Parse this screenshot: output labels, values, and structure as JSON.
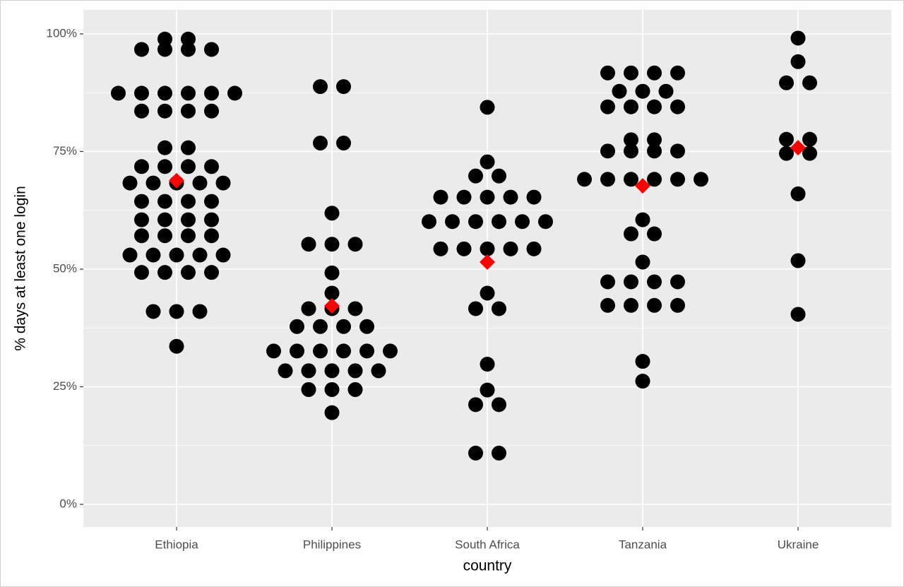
{
  "chart_data": {
    "type": "dotplot",
    "x_label": "country",
    "y_label": "% days at least one login",
    "categories": [
      "Ethiopia",
      "Philippines",
      "South Africa",
      "Tanzania",
      "Ukraine"
    ],
    "values": [
      [
        98.9,
        98.9,
        96.7,
        96.7,
        96.7,
        96.7,
        87.4,
        87.4,
        87.4,
        87.4,
        87.4,
        87.4,
        83.6,
        83.6,
        83.6,
        83.6,
        75.8,
        75.8,
        71.8,
        71.8,
        71.8,
        71.8,
        68.3,
        68.3,
        68.3,
        68.3,
        68.3,
        64.4,
        64.4,
        64.4,
        64.4,
        60.5,
        60.5,
        60.5,
        60.5,
        57.1,
        57.1,
        57.1,
        57.1,
        53.0,
        53.0,
        53.0,
        53.0,
        53.0,
        49.3,
        49.3,
        49.3,
        49.3,
        41.0,
        41.0,
        41.0,
        33.6
      ],
      [
        88.8,
        88.8,
        76.8,
        76.8,
        61.9,
        55.3,
        55.3,
        55.3,
        49.2,
        44.9,
        41.6,
        41.6,
        41.6,
        37.8,
        37.8,
        37.8,
        37.8,
        32.6,
        32.6,
        32.6,
        32.6,
        32.6,
        32.6,
        28.4,
        28.4,
        28.4,
        28.4,
        28.4,
        24.4,
        24.4,
        24.4,
        19.5
      ],
      [
        84.4,
        72.8,
        69.8,
        69.8,
        65.3,
        65.3,
        65.3,
        65.3,
        65.3,
        60.1,
        60.1,
        60.1,
        60.1,
        60.1,
        60.1,
        54.3,
        54.3,
        54.3,
        54.3,
        54.3,
        44.9,
        41.6,
        41.6,
        29.8,
        24.3,
        21.2,
        21.2,
        10.9,
        10.9
      ],
      [
        91.7,
        91.7,
        91.7,
        91.7,
        87.8,
        87.8,
        87.8,
        84.5,
        84.5,
        84.5,
        84.5,
        77.5,
        77.5,
        75.1,
        75.1,
        75.1,
        75.1,
        69.1,
        69.1,
        69.1,
        69.1,
        69.1,
        69.1,
        60.5,
        57.5,
        57.5,
        51.5,
        47.3,
        47.3,
        47.3,
        47.3,
        42.3,
        42.3,
        42.3,
        42.3,
        30.4,
        26.2
      ],
      [
        99.1,
        94.1,
        89.6,
        89.6,
        77.6,
        77.6,
        74.6,
        74.6,
        66.0,
        51.8,
        40.4
      ]
    ],
    "color": "#000000",
    "mean_values": [
      68.8,
      42.2,
      51.5,
      67.7,
      75.8
    ],
    "mean_color": "#ff0000",
    "ylim": [
      -4.8,
      105.1
    ],
    "yticks": [
      {
        "value": 0,
        "label": "0%"
      },
      {
        "value": 25,
        "label": "25%"
      },
      {
        "value": 50,
        "label": "50%"
      },
      {
        "value": 75,
        "label": "75%"
      },
      {
        "value": 100,
        "label": "100%"
      }
    ],
    "grid": true
  }
}
